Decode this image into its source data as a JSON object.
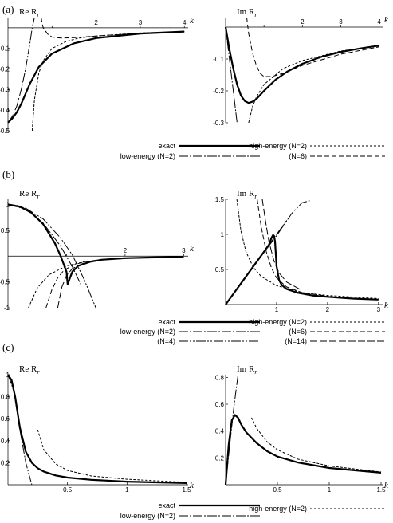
{
  "figure": {
    "panels": [
      {
        "label": "(a)",
        "legend": [
          {
            "text": "exact",
            "style": "exact"
          },
          {
            "text": "high-energy (N=2)",
            "style": "he"
          },
          {
            "text": "low-energy (N=2)",
            "style": "le"
          },
          {
            "text": "(N=6)",
            "style": "he6"
          }
        ]
      },
      {
        "label": "(b)",
        "legend": [
          {
            "text": "exact",
            "style": "exact"
          },
          {
            "text": "high-energy (N=2)",
            "style": "he"
          },
          {
            "text": "low-energy (N=2)",
            "style": "le"
          },
          {
            "text": "(N=6)",
            "style": "he6"
          },
          {
            "text": "(N=4)",
            "style": "le4"
          },
          {
            "text": "(N=14)",
            "style": "he14"
          }
        ]
      },
      {
        "label": "(c)",
        "legend": [
          {
            "text": "exact",
            "style": "exact"
          },
          {
            "text": "high-energy (N=2)",
            "style": "he"
          },
          {
            "text": "low-energy (N=2)",
            "style": "le"
          }
        ]
      }
    ]
  },
  "line_styles": {
    "exact": {
      "width": 2.2,
      "dash": ""
    },
    "he": {
      "width": 1.0,
      "dash": "3,2"
    },
    "le": {
      "width": 1.0,
      "dash": "12,2,2,2"
    },
    "he6": {
      "width": 1.0,
      "dash": "6,3"
    },
    "le4": {
      "width": 1.0,
      "dash": "12,2,2,2,2,2"
    },
    "he14": {
      "width": 1.0,
      "dash": "9,3"
    }
  },
  "chart_data": [
    {
      "type": "line",
      "panel": "(a)",
      "ylabel": "Re R",
      "ylabel_sub": "r",
      "xlabel": "k",
      "xlim": [
        0,
        4.05
      ],
      "ylim": [
        -0.5,
        0.05
      ],
      "xticks": [
        1,
        2,
        3,
        4
      ],
      "xtick_labels": [
        "",
        "2",
        "3",
        "4"
      ],
      "yticks": [
        -0.1,
        -0.2,
        -0.3,
        -0.4,
        -0.5
      ],
      "ytick_labels": [
        "-0.1",
        "-0.2",
        "-0.3",
        "-0.4",
        "-0.5"
      ],
      "series": [
        {
          "style": "exact",
          "x": [
            0,
            0.1,
            0.2,
            0.3,
            0.4,
            0.5,
            0.7,
            1.0,
            1.5,
            2.0,
            3.0,
            4.0
          ],
          "y": [
            -0.46,
            -0.44,
            -0.41,
            -0.37,
            -0.32,
            -0.27,
            -0.19,
            -0.125,
            -0.075,
            -0.05,
            -0.028,
            -0.018
          ]
        },
        {
          "style": "le",
          "x": [
            0,
            0.1,
            0.2,
            0.3,
            0.4,
            0.5,
            0.55,
            0.6
          ],
          "y": [
            -0.46,
            -0.43,
            -0.38,
            -0.3,
            -0.2,
            -0.07,
            0.0,
            0.05
          ]
        },
        {
          "style": "he",
          "x": [
            0.55,
            0.6,
            0.7,
            0.8,
            1.0,
            1.3,
            1.6,
            2.0,
            3.0,
            4.0
          ],
          "y": [
            -0.5,
            -0.35,
            -0.22,
            -0.16,
            -0.1,
            -0.068,
            -0.05,
            -0.04,
            -0.025,
            -0.018
          ]
        },
        {
          "style": "he6",
          "x": [
            0.75,
            0.8,
            0.9,
            1.0,
            1.2,
            1.5,
            2.0,
            3.0,
            4.0
          ],
          "y": [
            0.05,
            0.0,
            -0.03,
            -0.045,
            -0.05,
            -0.048,
            -0.04,
            -0.026,
            -0.018
          ]
        }
      ]
    },
    {
      "type": "line",
      "panel": "(a)",
      "ylabel": "Im R",
      "ylabel_sub": "r",
      "xlabel": "k",
      "xlim": [
        0,
        4.05
      ],
      "ylim": [
        -0.3,
        0.03
      ],
      "xticks": [
        1,
        2,
        3,
        4
      ],
      "xtick_labels": [
        "",
        "2",
        "3",
        "4"
      ],
      "yticks": [
        -0.1,
        -0.2,
        -0.3
      ],
      "ytick_labels": [
        "-0.1",
        "-0.2",
        "-0.3"
      ],
      "series": [
        {
          "style": "exact",
          "x": [
            0,
            0.1,
            0.2,
            0.3,
            0.4,
            0.5,
            0.6,
            0.7,
            0.8,
            1.0,
            1.3,
            1.6,
            2.0,
            2.5,
            3.0,
            3.5,
            4.0
          ],
          "y": [
            0,
            -0.07,
            -0.13,
            -0.18,
            -0.215,
            -0.232,
            -0.238,
            -0.234,
            -0.226,
            -0.2,
            -0.165,
            -0.14,
            -0.115,
            -0.093,
            -0.078,
            -0.067,
            -0.058
          ]
        },
        {
          "style": "le",
          "x": [
            0,
            0.1,
            0.2,
            0.3
          ],
          "y": [
            0,
            -0.1,
            -0.2,
            -0.3
          ]
        },
        {
          "style": "he",
          "x": [
            0.6,
            0.7,
            0.8,
            1.0,
            1.5,
            2.0,
            3.0,
            4.0
          ],
          "y": [
            -0.3,
            -0.25,
            -0.22,
            -0.18,
            -0.13,
            -0.105,
            -0.075,
            -0.058
          ]
        },
        {
          "style": "he6",
          "x": [
            0.55,
            0.6,
            0.7,
            0.8,
            0.9,
            1.0,
            1.2,
            1.5,
            2.0,
            3.0,
            4.0
          ],
          "y": [
            0.03,
            -0.02,
            -0.08,
            -0.12,
            -0.145,
            -0.155,
            -0.155,
            -0.145,
            -0.12,
            -0.085,
            -0.062
          ]
        }
      ]
    },
    {
      "type": "line",
      "panel": "(b)",
      "ylabel": "Re R",
      "ylabel_sub": "r",
      "xlabel": "k",
      "xlim": [
        0,
        3.05
      ],
      "ylim": [
        -1,
        1.1
      ],
      "xticks": [
        1,
        2,
        3
      ],
      "xtick_labels": [
        "",
        "2",
        "3"
      ],
      "yticks": [
        1,
        0.5,
        -0.5,
        -1
      ],
      "ytick_labels": [
        "1",
        "0.5",
        "-0.5",
        "-1"
      ],
      "series": [
        {
          "style": "exact",
          "x": [
            0,
            0.2,
            0.4,
            0.6,
            0.8,
            0.9,
            1.0,
            1.02,
            1.05,
            1.1,
            1.2,
            1.4,
            1.6,
            2.0,
            2.5,
            3.0
          ],
          "y": [
            1,
            0.96,
            0.84,
            0.62,
            0.25,
            0.0,
            -0.3,
            -0.55,
            -0.45,
            -0.3,
            -0.19,
            -0.11,
            -0.07,
            -0.04,
            -0.025,
            -0.018
          ]
        },
        {
          "style": "le",
          "x": [
            0,
            0.3,
            0.6,
            0.9,
            1.1,
            1.25
          ],
          "y": [
            1,
            0.91,
            0.64,
            0.19,
            -0.21,
            -0.56
          ]
        },
        {
          "style": "le4",
          "x": [
            0,
            0.3,
            0.6,
            0.9,
            1.1,
            1.3,
            1.5
          ],
          "y": [
            1,
            0.93,
            0.72,
            0.35,
            0.02,
            -0.45,
            -1.0
          ]
        },
        {
          "style": "he",
          "x": [
            0.35,
            0.5,
            0.7,
            1.0,
            1.3,
            1.6,
            2.0,
            2.5,
            3.0
          ],
          "y": [
            -1,
            -0.62,
            -0.36,
            -0.19,
            -0.11,
            -0.073,
            -0.046,
            -0.028,
            -0.02
          ]
        },
        {
          "style": "he6",
          "x": [
            0.65,
            0.75,
            0.85,
            0.95,
            1.1,
            1.3,
            1.6,
            2.0,
            3.0
          ],
          "y": [
            -1,
            -0.65,
            -0.42,
            -0.28,
            -0.18,
            -0.11,
            -0.066,
            -0.04,
            -0.018
          ]
        },
        {
          "style": "he14",
          "x": [
            0.85,
            0.92,
            1.0,
            1.1,
            1.3,
            1.6,
            2.0,
            3.0
          ],
          "y": [
            -1,
            -0.6,
            -0.38,
            -0.24,
            -0.13,
            -0.07,
            -0.042,
            -0.018
          ]
        }
      ]
    },
    {
      "type": "line",
      "panel": "(b)",
      "ylabel": "Im R",
      "ylabel_sub": "r",
      "xlabel": "k",
      "xlim": [
        0,
        3.05
      ],
      "ylim": [
        0,
        1.5
      ],
      "xticks": [
        1,
        2,
        3
      ],
      "xtick_labels": [
        "1",
        "2",
        "3"
      ],
      "yticks": [
        1.5,
        1,
        0.5
      ],
      "ytick_labels": [
        "1.5",
        "1",
        "0.5"
      ],
      "series": [
        {
          "style": "exact",
          "x": [
            0,
            0.2,
            0.4,
            0.6,
            0.75,
            0.85,
            0.9,
            0.93,
            0.95,
            0.97,
            1.0,
            1.05,
            1.1,
            1.2,
            1.4,
            1.7,
            2.0,
            2.5,
            3.0
          ],
          "y": [
            0,
            0.2,
            0.4,
            0.6,
            0.75,
            0.85,
            0.95,
            0.99,
            0.98,
            0.9,
            0.55,
            0.35,
            0.28,
            0.22,
            0.17,
            0.13,
            0.11,
            0.085,
            0.07
          ]
        },
        {
          "style": "le",
          "x": [
            0,
            0.5,
            0.8,
            1.0,
            1.2
          ],
          "y": [
            0,
            0.5,
            0.8,
            1.0,
            1.2
          ]
        },
        {
          "style": "le4",
          "x": [
            0,
            0.5,
            1.0,
            1.3,
            1.5,
            1.65
          ],
          "y": [
            0,
            0.5,
            0.98,
            1.3,
            1.45,
            1.48
          ]
        },
        {
          "style": "he",
          "x": [
            0.22,
            0.3,
            0.4,
            0.55,
            0.7,
            1.0,
            1.5,
            2.0,
            3.0
          ],
          "y": [
            1.5,
            1.05,
            0.75,
            0.52,
            0.4,
            0.27,
            0.17,
            0.13,
            0.085
          ]
        },
        {
          "style": "he6",
          "x": [
            0.62,
            0.7,
            0.8,
            0.9,
            1.0,
            1.2,
            1.5,
            2.0
          ],
          "y": [
            1.5,
            1.1,
            0.75,
            0.52,
            0.38,
            0.25,
            0.17,
            0.12
          ]
        },
        {
          "style": "he14",
          "x": [
            0.72,
            0.78,
            0.85,
            0.95,
            1.05,
            1.2,
            1.5
          ],
          "y": [
            1.5,
            1.2,
            0.9,
            0.62,
            0.45,
            0.32,
            0.2
          ]
        }
      ]
    },
    {
      "type": "line",
      "panel": "(c)",
      "ylabel": "Re R",
      "ylabel_sub": "r",
      "xlabel": "k",
      "xlim": [
        0,
        1.5
      ],
      "ylim": [
        0,
        1.0
      ],
      "xticks": [
        0.5,
        1,
        1.5
      ],
      "xtick_labels": [
        "0.5",
        "1",
        "1.5"
      ],
      "yticks": [
        1,
        0.8,
        0.6,
        0.4,
        0.2
      ],
      "ytick_labels": [
        "1",
        "0.8",
        "0.6",
        "0.4",
        "0.2"
      ],
      "series": [
        {
          "style": "exact",
          "x": [
            0,
            0.03,
            0.06,
            0.1,
            0.15,
            0.2,
            0.25,
            0.3,
            0.4,
            0.5,
            0.7,
            1.0,
            1.5
          ],
          "y": [
            1,
            0.95,
            0.8,
            0.52,
            0.3,
            0.2,
            0.15,
            0.12,
            0.085,
            0.065,
            0.045,
            0.028,
            0.015
          ]
        },
        {
          "style": "le",
          "x": [
            0,
            0.05,
            0.1,
            0.15,
            0.2
          ],
          "y": [
            1,
            0.85,
            0.5,
            0.2,
            0.0
          ]
        },
        {
          "style": "he",
          "x": [
            0.25,
            0.3,
            0.4,
            0.5,
            0.7,
            1.0,
            1.5
          ],
          "y": [
            0.5,
            0.32,
            0.19,
            0.13,
            0.08,
            0.05,
            0.022
          ]
        }
      ]
    },
    {
      "type": "line",
      "panel": "(c)",
      "ylabel": "Im R",
      "ylabel_sub": "r",
      "xlabel": "k",
      "xlim": [
        0,
        1.5
      ],
      "ylim": [
        0,
        0.82
      ],
      "xticks": [
        0.5,
        1,
        1.5
      ],
      "xtick_labels": [
        "0.5",
        "1",
        "1.5"
      ],
      "yticks": [
        0.8,
        0.6,
        0.4,
        0.2
      ],
      "ytick_labels": [
        "0.8",
        "0.6",
        "0.4",
        "0.2"
      ],
      "series": [
        {
          "style": "exact",
          "x": [
            0,
            0.03,
            0.06,
            0.09,
            0.12,
            0.15,
            0.2,
            0.3,
            0.4,
            0.5,
            0.7,
            1.0,
            1.5
          ],
          "y": [
            0,
            0.3,
            0.48,
            0.52,
            0.5,
            0.45,
            0.39,
            0.31,
            0.25,
            0.21,
            0.165,
            0.125,
            0.09
          ]
        },
        {
          "style": "le",
          "x": [
            0,
            0.04,
            0.08,
            0.12
          ],
          "y": [
            0,
            0.3,
            0.58,
            0.82
          ]
        },
        {
          "style": "he",
          "x": [
            0.25,
            0.3,
            0.4,
            0.5,
            0.7,
            1.0,
            1.5
          ],
          "y": [
            0.5,
            0.42,
            0.32,
            0.26,
            0.19,
            0.14,
            0.095
          ]
        }
      ]
    }
  ]
}
